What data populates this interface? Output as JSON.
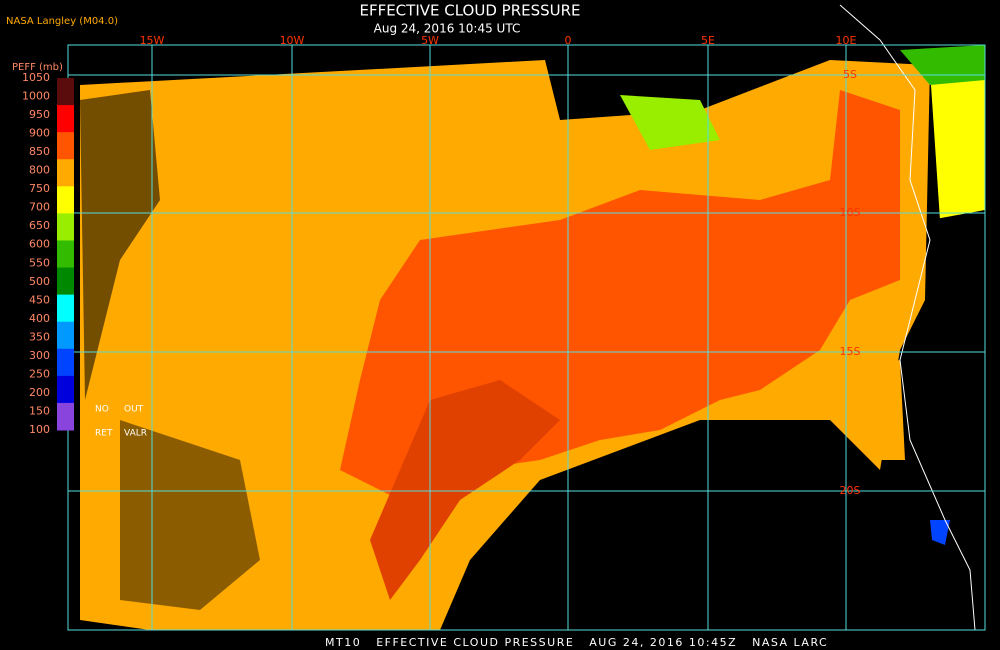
{
  "header": {
    "title": "EFFECTIVE CLOUD PRESSURE",
    "subtitle": "Aug 24, 2016 10:45 UTC",
    "credit": "NASA Langley (M04.0)"
  },
  "colorbar": {
    "label": "PEFF (mb)",
    "ticks": [
      "1050",
      "1000",
      "950",
      "900",
      "850",
      "800",
      "750",
      "700",
      "650",
      "600",
      "550",
      "500",
      "450",
      "400",
      "350",
      "300",
      "250",
      "200",
      "150",
      "100"
    ],
    "colors": [
      "#5a0c0c",
      "#ff0000",
      "#ff5500",
      "#ffaa00",
      "#ffff00",
      "#99ee00",
      "#33bb00",
      "#008800",
      "#00ffff",
      "#0099ff",
      "#0044ff",
      "#0000dd",
      "#8844dd"
    ],
    "notes": [
      "NO",
      "OUT",
      "RET",
      "VALR"
    ]
  },
  "map": {
    "lon_labels": [
      "15W",
      "10W",
      "5W",
      "0",
      "5E",
      "10E"
    ],
    "lat_labels": [
      "5S",
      "10S",
      "15S",
      "20S"
    ]
  },
  "footer": "MT10   EFFECTIVE CLOUD PRESSURE   AUG 24, 2016 10:45Z   NASA LARC"
}
